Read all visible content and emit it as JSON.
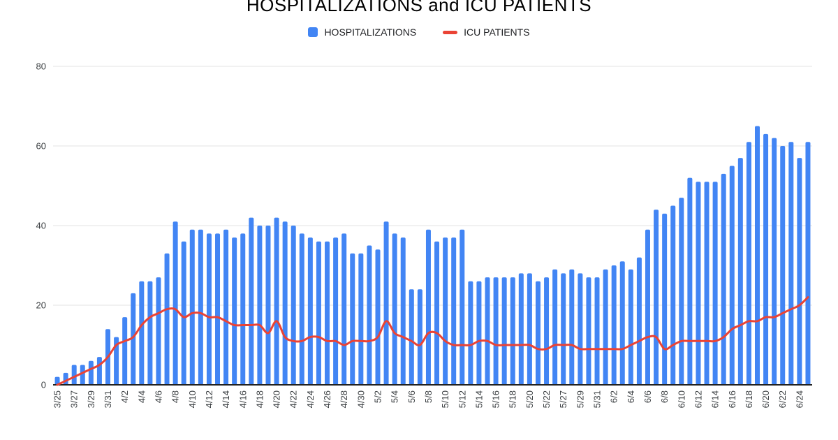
{
  "chart_data": {
    "type": "bar",
    "title": "HOSPITALIZATIONS and ICU PATIENTS",
    "legend_position": "top",
    "grid": true,
    "ylim": [
      0,
      80
    ],
    "yticks": [
      0,
      20,
      40,
      60,
      80
    ],
    "x_tick_every": 2,
    "xlabel": "",
    "ylabel": "",
    "grid_color": "#e3e3e3",
    "axis_line_color": "#212121",
    "label_color": "#3c4043",
    "categories": [
      "3/25",
      "3/26",
      "3/27",
      "3/28",
      "3/29",
      "3/30",
      "3/31",
      "4/1",
      "4/2",
      "4/3",
      "4/4",
      "4/5",
      "4/6",
      "4/7",
      "4/8",
      "4/9",
      "4/10",
      "4/11",
      "4/12",
      "4/13",
      "4/14",
      "4/15",
      "4/16",
      "4/17",
      "4/18",
      "4/19",
      "4/20",
      "4/21",
      "4/22",
      "4/23",
      "4/24",
      "4/25",
      "4/26",
      "4/27",
      "4/28",
      "4/29",
      "4/30",
      "5/1",
      "5/2",
      "5/3",
      "5/4",
      "5/5",
      "5/6",
      "5/7",
      "5/8",
      "5/9",
      "5/10",
      "5/11",
      "5/12",
      "5/13",
      "5/14",
      "5/15",
      "5/16",
      "5/17",
      "5/18",
      "5/19",
      "5/20",
      "5/21",
      "5/22",
      "5/26",
      "5/27",
      "5/28",
      "5/29",
      "5/30",
      "5/31",
      "6/1",
      "6/2",
      "6/3",
      "6/4",
      "6/5",
      "6/6",
      "6/7",
      "6/8",
      "6/9",
      "6/10",
      "6/11",
      "6/12",
      "6/13",
      "6/14",
      "6/15",
      "6/16",
      "6/17",
      "6/18",
      "6/19",
      "6/20",
      "6/21",
      "6/22",
      "6/23",
      "6/24",
      "6/25"
    ],
    "series": [
      {
        "name": "HOSPITALIZATIONS",
        "type": "bar",
        "color": "#4285f4",
        "values": [
          2,
          3,
          5,
          5,
          6,
          7,
          14,
          12,
          17,
          23,
          26,
          26,
          27,
          33,
          41,
          36,
          39,
          39,
          38,
          38,
          39,
          37,
          38,
          42,
          40,
          40,
          42,
          41,
          40,
          38,
          37,
          36,
          36,
          37,
          38,
          33,
          33,
          35,
          34,
          41,
          38,
          37,
          24,
          24,
          39,
          36,
          37,
          37,
          39,
          26,
          26,
          27,
          27,
          27,
          27,
          28,
          28,
          26,
          27,
          29,
          28,
          29,
          28,
          27,
          27,
          29,
          30,
          31,
          29,
          32,
          39,
          44,
          43,
          45,
          47,
          52,
          51,
          51,
          51,
          53,
          55,
          57,
          61,
          65,
          63,
          62,
          60,
          61,
          57,
          61
        ]
      },
      {
        "name": "ICU PATIENTS",
        "type": "line",
        "color": "#ea4335",
        "values": [
          0,
          1,
          2,
          3,
          4,
          5,
          7,
          10,
          11,
          12,
          15,
          17,
          18,
          19,
          19,
          17,
          18,
          18,
          17,
          17,
          16,
          15,
          15,
          15,
          15,
          13,
          16,
          12,
          11,
          11,
          12,
          12,
          11,
          11,
          10,
          11,
          11,
          11,
          12,
          16,
          13,
          12,
          11,
          10,
          13,
          13,
          11,
          10,
          10,
          10,
          11,
          11,
          10,
          10,
          10,
          10,
          10,
          9,
          9,
          10,
          10,
          10,
          9,
          9,
          9,
          9,
          9,
          9,
          10,
          11,
          12,
          12,
          9,
          10,
          11,
          11,
          11,
          11,
          11,
          12,
          14,
          15,
          16,
          16,
          17,
          17,
          18,
          19,
          20,
          22
        ]
      }
    ]
  }
}
